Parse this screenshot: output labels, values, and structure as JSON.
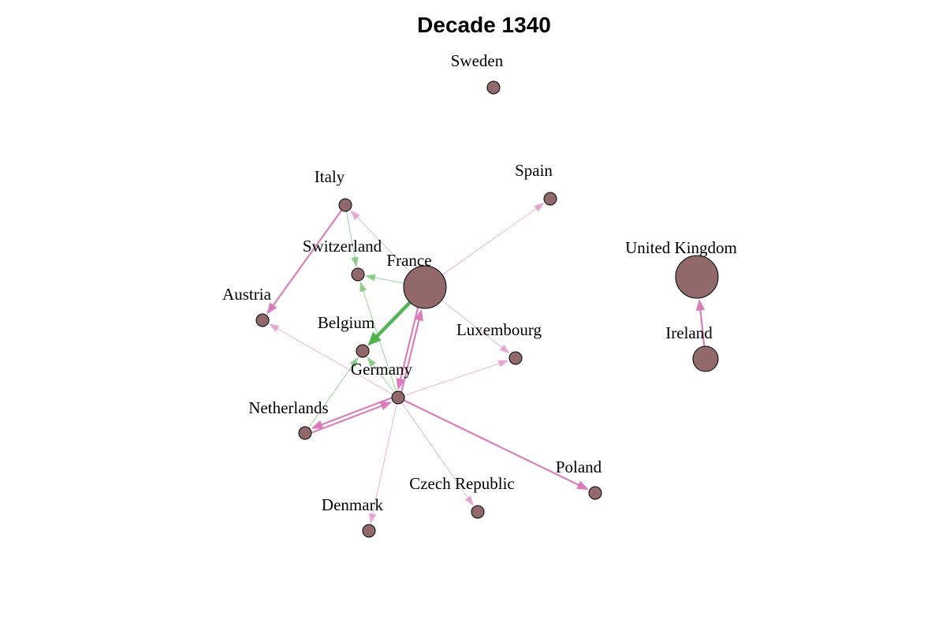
{
  "title": "Decade 1340",
  "colors": {
    "node_fill": "#92696b",
    "edge_pink": "#d977b8",
    "edge_green": "#4daf4a"
  },
  "nodes": [
    {
      "id": "sweden",
      "label": "Sweden",
      "size": "small"
    },
    {
      "id": "spain",
      "label": "Spain",
      "size": "small"
    },
    {
      "id": "italy",
      "label": "Italy",
      "size": "small"
    },
    {
      "id": "switzerland",
      "label": "Switzerland",
      "size": "small"
    },
    {
      "id": "france",
      "label": "France",
      "size": "large"
    },
    {
      "id": "austria",
      "label": "Austria",
      "size": "small"
    },
    {
      "id": "belgium",
      "label": "Belgium",
      "size": "small"
    },
    {
      "id": "luxembourg",
      "label": "Luxembourg",
      "size": "small"
    },
    {
      "id": "germany",
      "label": "Germany",
      "size": "small"
    },
    {
      "id": "netherlands",
      "label": "Netherlands",
      "size": "small"
    },
    {
      "id": "denmark",
      "label": "Denmark",
      "size": "small"
    },
    {
      "id": "czech",
      "label": "Czech Republic",
      "size": "small"
    },
    {
      "id": "poland",
      "label": "Poland",
      "size": "small"
    },
    {
      "id": "uk",
      "label": "United Kingdom",
      "size": "large"
    },
    {
      "id": "ireland",
      "label": "Ireland",
      "size": "medium"
    }
  ],
  "edges": [
    {
      "from": "france",
      "to": "belgium",
      "color": "green",
      "weight": "heavy"
    },
    {
      "from": "france",
      "to": "switzerland",
      "color": "green",
      "weight": "light"
    },
    {
      "from": "italy",
      "to": "switzerland",
      "color": "green",
      "weight": "light"
    },
    {
      "from": "germany",
      "to": "switzerland",
      "color": "green",
      "weight": "light"
    },
    {
      "from": "germany",
      "to": "belgium",
      "color": "green",
      "weight": "light"
    },
    {
      "from": "netherlands",
      "to": "belgium",
      "color": "green",
      "weight": "light"
    },
    {
      "from": "france",
      "to": "spain",
      "color": "pink",
      "weight": "light"
    },
    {
      "from": "france",
      "to": "italy",
      "color": "pink",
      "weight": "light"
    },
    {
      "from": "france",
      "to": "luxembourg",
      "color": "pink",
      "weight": "light"
    },
    {
      "from": "france",
      "to": "germany",
      "color": "pink",
      "weight": "medium"
    },
    {
      "from": "germany",
      "to": "france",
      "color": "pink",
      "weight": "medium"
    },
    {
      "from": "italy",
      "to": "austria",
      "color": "pink",
      "weight": "medium"
    },
    {
      "from": "germany",
      "to": "austria",
      "color": "pink",
      "weight": "light"
    },
    {
      "from": "germany",
      "to": "luxembourg",
      "color": "pink",
      "weight": "light"
    },
    {
      "from": "germany",
      "to": "netherlands",
      "color": "pink",
      "weight": "medium"
    },
    {
      "from": "netherlands",
      "to": "germany",
      "color": "pink",
      "weight": "medium"
    },
    {
      "from": "germany",
      "to": "denmark",
      "color": "pink",
      "weight": "light"
    },
    {
      "from": "germany",
      "to": "czech",
      "color": "pink",
      "weight": "light"
    },
    {
      "from": "germany",
      "to": "poland",
      "color": "pink",
      "weight": "medium"
    },
    {
      "from": "ireland",
      "to": "uk",
      "color": "pink",
      "weight": "medium"
    }
  ]
}
